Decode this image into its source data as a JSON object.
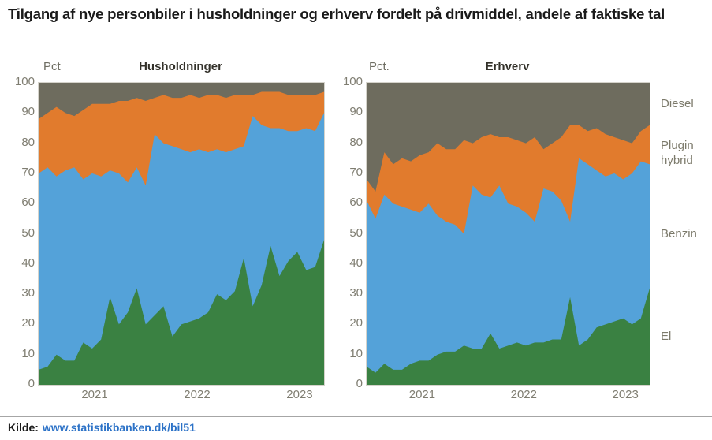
{
  "page": {
    "title": "Tilgang af nye personbiler i husholdninger og erhverv fordelt på drivmiddel, andele af faktiske tal",
    "source_label": "Kilde:",
    "source_link": "www.statistikbanken.dk/bil51"
  },
  "colors": {
    "el": "#3a8142",
    "benzin": "#54a2d9",
    "plugin_hybrid": "#e17b2d",
    "diesel": "#6e6c5e",
    "tick_text": "#7f7d71",
    "legend_text": "#7c7a6b",
    "link_blue": "#2c72c7"
  },
  "legend": [
    {
      "label": "Diesel"
    },
    {
      "label": "Plugin hybrid"
    },
    {
      "label": "Benzin"
    },
    {
      "label": "El"
    }
  ],
  "chart_data": [
    {
      "type": "area",
      "stacked": true,
      "title": "Husholdninger",
      "unit_label": "Pct",
      "ylim": [
        0,
        100
      ],
      "grid": false,
      "legend_position": "right-outside",
      "y_ticks": [
        100,
        90,
        80,
        70,
        60,
        50,
        40,
        30,
        20,
        10,
        0
      ],
      "x_tick_labels": [
        "2021",
        "2022",
        "2023"
      ],
      "categories": [
        "2021-01",
        "2021-02",
        "2021-03",
        "2021-04",
        "2021-05",
        "2021-06",
        "2021-07",
        "2021-08",
        "2021-09",
        "2021-10",
        "2021-11",
        "2021-12",
        "2022-01",
        "2022-02",
        "2022-03",
        "2022-04",
        "2022-05",
        "2022-06",
        "2022-07",
        "2022-08",
        "2022-09",
        "2022-10",
        "2022-11",
        "2022-12",
        "2023-01",
        "2023-02",
        "2023-03",
        "2023-04",
        "2023-05",
        "2023-06",
        "2023-07",
        "2023-08",
        "2023-09"
      ],
      "series": [
        {
          "name": "El",
          "color_key": "el",
          "values": [
            5,
            6,
            10,
            8,
            8,
            14,
            12,
            15,
            29,
            20,
            24,
            32,
            20,
            23,
            26,
            16,
            20,
            21,
            22,
            24,
            30,
            28,
            31,
            42,
            26,
            33,
            46,
            36,
            41,
            44,
            38,
            39,
            48
          ]
        },
        {
          "name": "Benzin",
          "color_key": "benzin",
          "values": [
            65,
            66,
            59,
            63,
            64,
            54,
            58,
            54,
            42,
            50,
            43,
            40,
            46,
            60,
            54,
            63,
            58,
            56,
            56,
            53,
            48,
            49,
            47,
            37,
            63,
            53,
            39,
            49,
            43,
            40,
            47,
            45,
            42
          ]
        },
        {
          "name": "Plugin hybrid",
          "color_key": "plugin_hybrid",
          "values": [
            18,
            18,
            23,
            19,
            17,
            23,
            23,
            24,
            22,
            24,
            27,
            23,
            28,
            12,
            16,
            16,
            17,
            19,
            17,
            19,
            18,
            18,
            18,
            17,
            7,
            11,
            12,
            12,
            12,
            12,
            11,
            12,
            7
          ]
        },
        {
          "name": "Diesel",
          "color_key": "diesel",
          "values": [
            12,
            10,
            8,
            10,
            11,
            9,
            7,
            7,
            7,
            6,
            6,
            5,
            6,
            5,
            4,
            5,
            5,
            4,
            5,
            4,
            4,
            5,
            4,
            4,
            4,
            3,
            3,
            3,
            4,
            4,
            4,
            4,
            3
          ]
        }
      ]
    },
    {
      "type": "area",
      "stacked": true,
      "title": "Erhverv",
      "unit_label": "Pct.",
      "ylim": [
        0,
        100
      ],
      "grid": false,
      "legend_position": "right-outside",
      "y_ticks": [
        100,
        90,
        80,
        70,
        60,
        50,
        40,
        30,
        20,
        10,
        0
      ],
      "x_tick_labels": [
        "2021",
        "2022",
        "2023"
      ],
      "categories": [
        "2021-01",
        "2021-02",
        "2021-03",
        "2021-04",
        "2021-05",
        "2021-06",
        "2021-07",
        "2021-08",
        "2021-09",
        "2021-10",
        "2021-11",
        "2021-12",
        "2022-01",
        "2022-02",
        "2022-03",
        "2022-04",
        "2022-05",
        "2022-06",
        "2022-07",
        "2022-08",
        "2022-09",
        "2022-10",
        "2022-11",
        "2022-12",
        "2023-01",
        "2023-02",
        "2023-03",
        "2023-04",
        "2023-05",
        "2023-06",
        "2023-07",
        "2023-08",
        "2023-09"
      ],
      "series": [
        {
          "name": "El",
          "color_key": "el",
          "values": [
            6,
            4,
            7,
            5,
            5,
            7,
            8,
            8,
            10,
            11,
            11,
            13,
            12,
            12,
            17,
            12,
            13,
            14,
            13,
            14,
            14,
            15,
            15,
            29,
            13,
            15,
            19,
            20,
            21,
            22,
            20,
            22,
            32
          ]
        },
        {
          "name": "Benzin",
          "color_key": "benzin",
          "values": [
            55,
            51,
            56,
            55,
            54,
            51,
            49,
            52,
            46,
            43,
            42,
            37,
            54,
            51,
            45,
            54,
            47,
            45,
            44,
            40,
            51,
            49,
            46,
            25,
            62,
            58,
            52,
            49,
            49,
            46,
            50,
            52,
            41
          ]
        },
        {
          "name": "Plugin hybrid",
          "color_key": "plugin_hybrid",
          "values": [
            7,
            9,
            14,
            13,
            16,
            16,
            19,
            17,
            24,
            24,
            25,
            31,
            14,
            19,
            21,
            16,
            22,
            22,
            23,
            28,
            13,
            16,
            21,
            32,
            11,
            11,
            14,
            14,
            12,
            13,
            10,
            10,
            13
          ]
        },
        {
          "name": "Diesel",
          "color_key": "diesel",
          "values": [
            32,
            36,
            23,
            27,
            25,
            26,
            24,
            23,
            20,
            22,
            22,
            19,
            20,
            18,
            17,
            18,
            18,
            19,
            20,
            18,
            22,
            20,
            18,
            14,
            14,
            16,
            15,
            17,
            18,
            19,
            20,
            16,
            14
          ]
        }
      ]
    }
  ]
}
